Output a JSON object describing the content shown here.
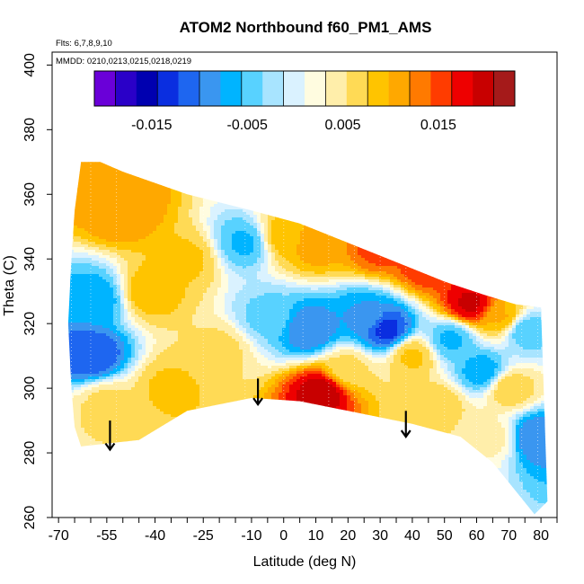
{
  "chart_data": {
    "type": "heatmap",
    "title": "ATOM2 Northbound f60_PM1_AMS",
    "flights_label": "Flts: 6,7,8,9,10",
    "dates_label": "MMDD: 0210,0213,0215,0218,0219",
    "xlabel": "Latitude (deg N)",
    "ylabel": "Theta (C)",
    "xlim": [
      -72,
      85
    ],
    "ylim": [
      260,
      404
    ],
    "x_ticks": [
      -70,
      -65,
      -60,
      -55,
      -50,
      -45,
      -40,
      -35,
      -30,
      -25,
      -20,
      -15,
      -10,
      -5,
      0,
      5,
      10,
      15,
      20,
      25,
      30,
      35,
      40,
      45,
      50,
      55,
      60,
      65,
      70,
      75,
      80,
      85
    ],
    "x_tick_labels": [
      {
        "value": -70,
        "label": "-70"
      },
      {
        "value": -55,
        "label": "-55"
      },
      {
        "value": -40,
        "label": "-40"
      },
      {
        "value": -25,
        "label": "-25"
      },
      {
        "value": -10,
        "label": "-10"
      },
      {
        "value": 0,
        "label": "0"
      },
      {
        "value": 10,
        "label": "10"
      },
      {
        "value": 20,
        "label": "20"
      },
      {
        "value": 30,
        "label": "30"
      },
      {
        "value": 40,
        "label": "40"
      },
      {
        "value": 50,
        "label": "50"
      },
      {
        "value": 60,
        "label": "60"
      },
      {
        "value": 70,
        "label": "70"
      },
      {
        "value": 80,
        "label": "80"
      }
    ],
    "y_ticks": [
      {
        "value": 260,
        "label": "260"
      },
      {
        "value": 280,
        "label": "280"
      },
      {
        "value": 300,
        "label": "300"
      },
      {
        "value": 320,
        "label": "320"
      },
      {
        "value": 340,
        "label": "340"
      },
      {
        "value": 360,
        "label": "360"
      },
      {
        "value": 380,
        "label": "380"
      },
      {
        "value": 400,
        "label": "400"
      }
    ],
    "colorbar": {
      "min": -0.021,
      "max": 0.023,
      "colors": [
        "#6a00d8",
        "#2a00c8",
        "#0000b0",
        "#0a2ee0",
        "#1e66f0",
        "#3a96f0",
        "#00b4ff",
        "#58d2ff",
        "#a8e4ff",
        "#daf2ff",
        "#fffce0",
        "#ffeeaa",
        "#ffda55",
        "#ffc400",
        "#ffa800",
        "#ff7a00",
        "#ff3c00",
        "#ee0000",
        "#c80000",
        "#a51a1a"
      ],
      "tick_labels": [
        {
          "value": -0.015,
          "label": "-0.015"
        },
        {
          "value": -0.005,
          "label": "-0.005"
        },
        {
          "value": 0.005,
          "label": "0.005"
        },
        {
          "value": 0.015,
          "label": "0.015"
        }
      ]
    },
    "domain_top": [
      [
        -63,
        370
      ],
      [
        -57,
        370
      ],
      [
        -50,
        367
      ],
      [
        -30,
        360
      ],
      [
        -10,
        355
      ],
      [
        5,
        351
      ],
      [
        20,
        345
      ],
      [
        35,
        339
      ],
      [
        50,
        333
      ],
      [
        62,
        329
      ],
      [
        72,
        326
      ],
      [
        80,
        325
      ]
    ],
    "domain_bottom": [
      [
        -63,
        282
      ],
      [
        -45,
        284
      ],
      [
        -30,
        293
      ],
      [
        -10,
        297
      ],
      [
        5,
        296
      ],
      [
        20,
        293
      ],
      [
        40,
        289
      ],
      [
        55,
        285
      ],
      [
        65,
        277
      ],
      [
        78,
        261
      ],
      [
        82,
        265
      ]
    ],
    "domain_left": [
      [
        -63,
        370
      ],
      [
        -65,
        355
      ],
      [
        -66,
        340
      ],
      [
        -67,
        320
      ],
      [
        -66,
        300
      ],
      [
        -65,
        288
      ],
      [
        -63,
        282
      ]
    ],
    "features": [
      {
        "lat": -50,
        "theta": 355,
        "value": 0.012
      },
      {
        "lat": -42,
        "theta": 330,
        "value": 0.009
      },
      {
        "lat": -30,
        "theta": 340,
        "value": 0.008
      },
      {
        "lat": -12,
        "theta": 345,
        "value": -0.006
      },
      {
        "lat": 0,
        "theta": 347,
        "value": 0.009
      },
      {
        "lat": 10,
        "theta": 345,
        "value": 0.011
      },
      {
        "lat": 30,
        "theta": 344,
        "value": 0.015
      },
      {
        "lat": 45,
        "theta": 338,
        "value": 0.016
      },
      {
        "lat": 58,
        "theta": 326,
        "value": 0.019
      },
      {
        "lat": 68,
        "theta": 322,
        "value": 0.01
      },
      {
        "lat": -60,
        "theta": 310,
        "value": -0.012
      },
      {
        "lat": -58,
        "theta": 328,
        "value": -0.007
      },
      {
        "lat": -55,
        "theta": 295,
        "value": 0.006
      },
      {
        "lat": -35,
        "theta": 300,
        "value": 0.008
      },
      {
        "lat": -20,
        "theta": 312,
        "value": 0.006
      },
      {
        "lat": -5,
        "theta": 322,
        "value": -0.004
      },
      {
        "lat": 8,
        "theta": 318,
        "value": -0.01
      },
      {
        "lat": 12,
        "theta": 299,
        "value": 0.02
      },
      {
        "lat": 20,
        "theta": 306,
        "value": 0.006
      },
      {
        "lat": 25,
        "theta": 322,
        "value": -0.008
      },
      {
        "lat": 32,
        "theta": 318,
        "value": -0.013
      },
      {
        "lat": 40,
        "theta": 310,
        "value": 0.008
      },
      {
        "lat": 48,
        "theta": 295,
        "value": 0.007
      },
      {
        "lat": 52,
        "theta": 315,
        "value": -0.006
      },
      {
        "lat": 62,
        "theta": 305,
        "value": -0.007
      },
      {
        "lat": 70,
        "theta": 300,
        "value": 0.007
      },
      {
        "lat": 75,
        "theta": 318,
        "value": -0.005
      },
      {
        "lat": 78,
        "theta": 285,
        "value": -0.01
      },
      {
        "lat": 65,
        "theta": 285,
        "value": 0.004
      }
    ],
    "arrows": [
      {
        "lat": -54,
        "theta_from": 290,
        "theta_to": 281
      },
      {
        "lat": -8,
        "theta_from": 303,
        "theta_to": 295
      },
      {
        "lat": 38,
        "theta_from": 293,
        "theta_to": 285
      }
    ]
  }
}
